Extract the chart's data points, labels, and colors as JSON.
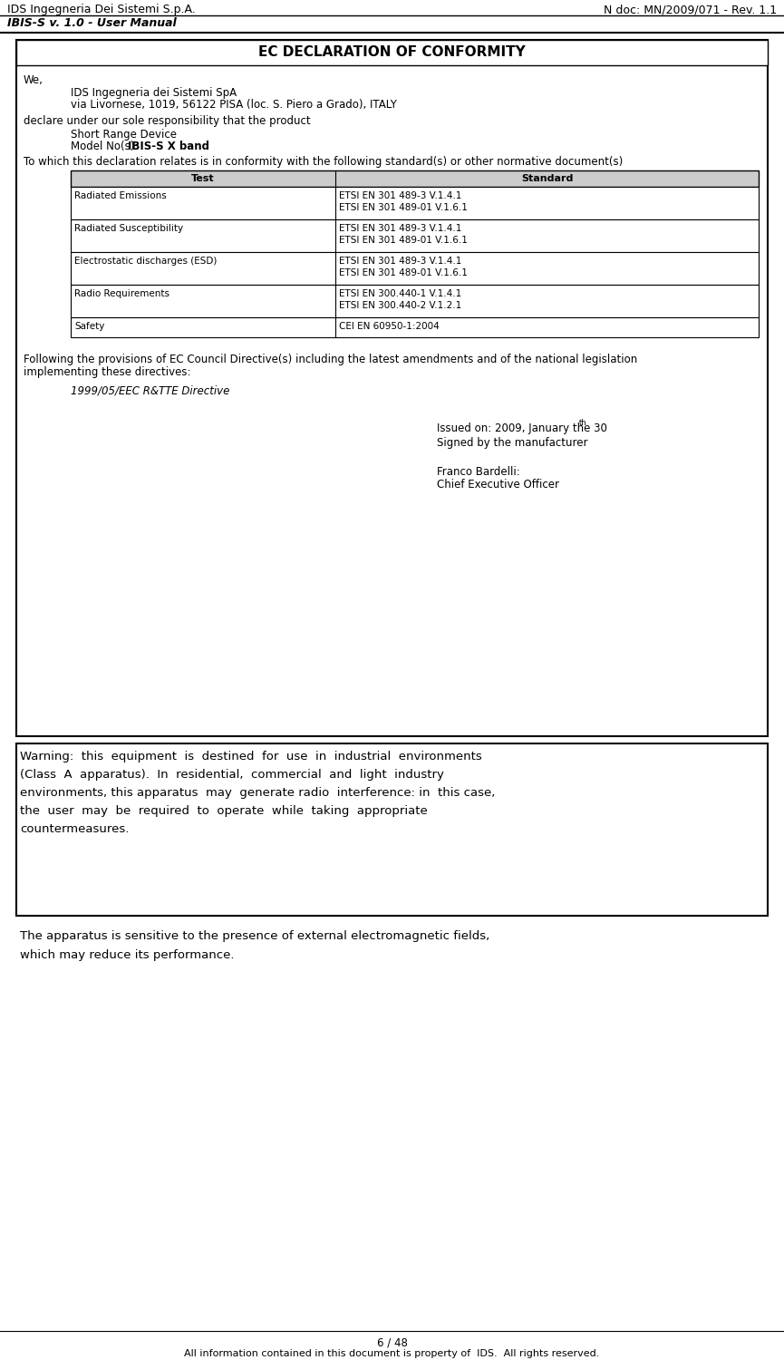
{
  "header_left_line1": "IDS Ingegneria Dei Sistemi S.p.A.",
  "header_left_line2": "IBIS-S v. 1.0 - User Manual",
  "header_right": "N doc: MN/2009/071 - Rev. 1.1",
  "footer_line1": "6 / 48",
  "footer_line2": "All information contained in this document is property of  IDS.  All rights reserved.",
  "doc_title": "EC DECLARATION OF CONFORMITY",
  "we_line": "We,",
  "company_line1": "IDS Ingegneria dei Sistemi SpA",
  "company_line2": "via Livornese, 1019, 56122 PISA (loc. S. Piero a Grado), ITALY",
  "declare_line": "declare under our sole responsibility that the product",
  "product_line1": "Short Range Device",
  "product_line2_prefix": "Model No(s): ",
  "product_line2_bold": "IBIS-S X band",
  "conformity_line": "To which this declaration relates is in conformity with the following standard(s) or other normative document(s)",
  "table_headers": [
    "Test",
    "Standard"
  ],
  "table_rows": [
    [
      "Radiated Emissions",
      "ETSI EN 301 489-3 V.1.4.1\nETSI EN 301 489-01 V.1.6.1"
    ],
    [
      "Radiated Susceptibility",
      "ETSI EN 301 489-3 V.1.4.1\nETSI EN 301 489-01 V.1.6.1"
    ],
    [
      "Electrostatic discharges (ESD)",
      "ETSI EN 301 489-3 V.1.4.1\nETSI EN 301 489-01 V.1.6.1"
    ],
    [
      "Radio Requirements",
      "ETSI EN 300.440-1 V.1.4.1\nETSI EN 300.440-2 V.1.2.1"
    ],
    [
      "Safety",
      "CEI EN 60950-1:2004"
    ]
  ],
  "following_line1": "Following the provisions of EC Council Directive(s) including the latest amendments and of the national legislation",
  "following_line2": "implementing these directives:",
  "directive_italic": "1999/05/EEC R&TTE Directive",
  "issued_line": "Issued on: 2009, January the 30",
  "issued_superscript": "th",
  "signed_line": "Signed by the manufacturer",
  "name_line": "Franco Bardelli:",
  "title_line": "Chief Executive Officer",
  "warning_lines": [
    "Warning:  this  equipment  is  destined  for  use  in  industrial  environments",
    "(Class  A  apparatus).  In  residential,  commercial  and  light  industry",
    "environments, this apparatus  may  generate radio  interference: in  this case,",
    "the  user  may  be  required  to  operate  while  taking  appropriate",
    "countermeasures."
  ],
  "apparatus_lines": [
    "The apparatus is sensitive to the presence of external electromagnetic fields,",
    "which may reduce its performance."
  ],
  "bg_color": "#ffffff"
}
